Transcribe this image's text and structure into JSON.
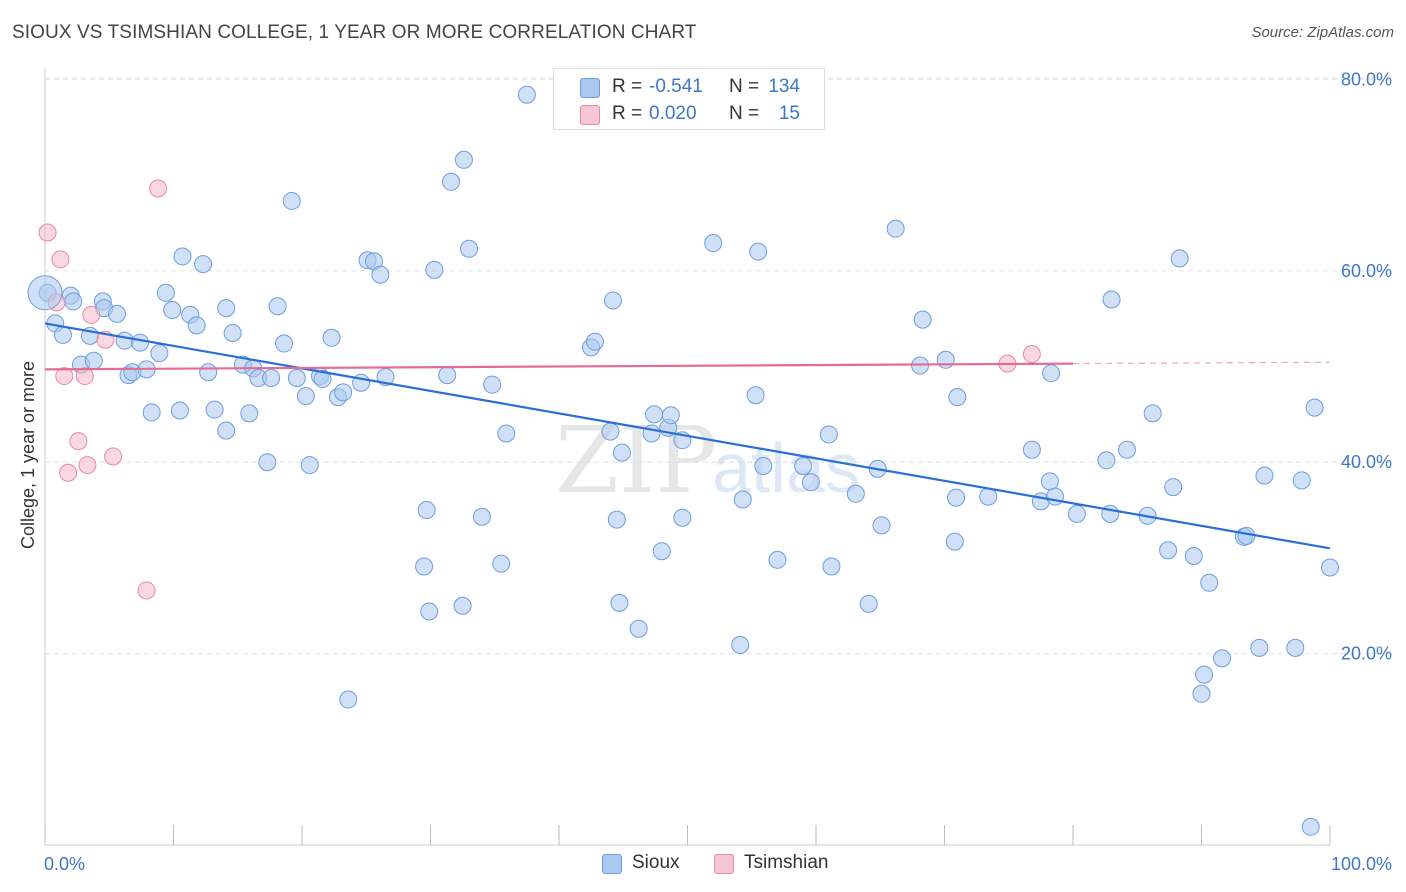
{
  "header": {
    "title": "SIOUX VS TSIMSHIAN COLLEGE, 1 YEAR OR MORE CORRELATION CHART",
    "source": "Source: ZipAtlas.com"
  },
  "legend": {
    "rows": [
      {
        "r_label": "R =",
        "r_value": "-0.541",
        "n_label": "N =",
        "n_value": "134"
      },
      {
        "r_label": "R =",
        "r_value": "0.020",
        "n_label": "N =",
        "n_value": "15"
      }
    ]
  },
  "bottom_legend": {
    "sioux": "Sioux",
    "tsimshian": "Tsimshian"
  },
  "watermark": {
    "zip": "ZIP",
    "atlas": "atlas"
  },
  "colors": {
    "sioux_fill": "#a9c8f0",
    "sioux_stroke": "#6c9de0",
    "sioux_line": "#2a6fd6",
    "tsimshian_fill": "#f6b8c9",
    "tsimshian_stroke": "#e58aa6",
    "tsimshian_line": "#e56b92",
    "axis_text": "#3b78c9",
    "grid": "#e3e3e3"
  },
  "chart_data": {
    "type": "scatter",
    "title": "SIOUX VS TSIMSHIAN COLLEGE, 1 YEAR OR MORE CORRELATION CHART",
    "xlabel": "",
    "ylabel": "College, 1 year or more",
    "xlim": [
      0,
      100
    ],
    "ylim": [
      0,
      82
    ],
    "x_tick_labels": [
      "0.0%",
      "100.0%"
    ],
    "y_ticks": [
      20,
      40,
      60,
      80
    ],
    "y_tick_labels": [
      "20.0%",
      "40.0%",
      "60.0%",
      "80.0%"
    ],
    "grid": true,
    "legend_position": "top-center",
    "series": [
      {
        "name": "Sioux",
        "r": -0.541,
        "n": 134,
        "trend": {
          "x": [
            0,
            100
          ],
          "y": [
            54.5,
            31.0
          ]
        },
        "points": [
          [
            0.2,
            57.7
          ],
          [
            0.8,
            54.5
          ],
          [
            1.4,
            53.3
          ],
          [
            2.0,
            57.4
          ],
          [
            2.2,
            56.8
          ],
          [
            2.8,
            50.2
          ],
          [
            3.5,
            53.2
          ],
          [
            3.8,
            50.6
          ],
          [
            4.5,
            56.8
          ],
          [
            4.6,
            56.1
          ],
          [
            5.6,
            55.5
          ],
          [
            6.2,
            52.7
          ],
          [
            6.5,
            49.1
          ],
          [
            6.8,
            49.4
          ],
          [
            7.4,
            52.5
          ],
          [
            7.9,
            49.7
          ],
          [
            8.3,
            45.2
          ],
          [
            8.9,
            51.4
          ],
          [
            9.4,
            57.7
          ],
          [
            9.9,
            55.9
          ],
          [
            10.5,
            45.4
          ],
          [
            10.7,
            61.5
          ],
          [
            11.3,
            55.4
          ],
          [
            11.8,
            54.3
          ],
          [
            12.3,
            60.7
          ],
          [
            12.7,
            49.4
          ],
          [
            13.2,
            45.5
          ],
          [
            14.1,
            43.3
          ],
          [
            14.1,
            56.1
          ],
          [
            14.6,
            53.5
          ],
          [
            15.4,
            50.2
          ],
          [
            15.9,
            45.1
          ],
          [
            16.2,
            49.8
          ],
          [
            16.6,
            48.8
          ],
          [
            17.3,
            40.0
          ],
          [
            17.6,
            48.8
          ],
          [
            18.1,
            56.3
          ],
          [
            18.6,
            52.4
          ],
          [
            19.2,
            67.3
          ],
          [
            19.6,
            48.8
          ],
          [
            20.3,
            46.9
          ],
          [
            20.6,
            39.7
          ],
          [
            21.4,
            49.0
          ],
          [
            21.6,
            48.7
          ],
          [
            22.3,
            53.0
          ],
          [
            22.8,
            46.8
          ],
          [
            23.2,
            47.3
          ],
          [
            23.6,
            15.2
          ],
          [
            24.6,
            48.3
          ],
          [
            25.1,
            61.1
          ],
          [
            25.6,
            61.0
          ],
          [
            26.1,
            59.6
          ],
          [
            26.5,
            48.9
          ],
          [
            29.5,
            29.1
          ],
          [
            29.7,
            35.0
          ],
          [
            29.9,
            24.4
          ],
          [
            30.3,
            60.1
          ],
          [
            31.3,
            49.1
          ],
          [
            31.6,
            69.3
          ],
          [
            32.5,
            25.0
          ],
          [
            32.6,
            71.6
          ],
          [
            33.0,
            62.3
          ],
          [
            34.0,
            34.3
          ],
          [
            34.8,
            48.1
          ],
          [
            35.5,
            29.4
          ],
          [
            35.9,
            43.0
          ],
          [
            37.5,
            78.4
          ],
          [
            42.5,
            52.0
          ],
          [
            42.8,
            52.6
          ],
          [
            44.0,
            43.2
          ],
          [
            44.2,
            56.9
          ],
          [
            44.5,
            34.0
          ],
          [
            44.7,
            25.3
          ],
          [
            44.9,
            41.0
          ],
          [
            46.2,
            22.6
          ],
          [
            47.2,
            43.0
          ],
          [
            47.4,
            45.0
          ],
          [
            48.0,
            30.7
          ],
          [
            48.5,
            43.6
          ],
          [
            48.7,
            44.9
          ],
          [
            49.6,
            34.2
          ],
          [
            49.6,
            42.3
          ],
          [
            52.0,
            62.9
          ],
          [
            54.1,
            20.9
          ],
          [
            54.3,
            36.1
          ],
          [
            55.3,
            47.0
          ],
          [
            55.5,
            62.0
          ],
          [
            55.9,
            39.6
          ],
          [
            57.0,
            29.8
          ],
          [
            59.0,
            39.6
          ],
          [
            59.6,
            37.9
          ],
          [
            61.0,
            42.9
          ],
          [
            61.2,
            29.1
          ],
          [
            63.1,
            36.7
          ],
          [
            64.1,
            25.2
          ],
          [
            64.8,
            39.3
          ],
          [
            65.1,
            33.4
          ],
          [
            66.2,
            64.4
          ],
          [
            68.1,
            50.1
          ],
          [
            68.3,
            54.9
          ],
          [
            70.1,
            50.7
          ],
          [
            70.8,
            31.7
          ],
          [
            70.9,
            36.3
          ],
          [
            71.0,
            46.8
          ],
          [
            73.4,
            36.4
          ],
          [
            76.8,
            41.3
          ],
          [
            77.5,
            35.9
          ],
          [
            78.2,
            38.0
          ],
          [
            78.3,
            49.3
          ],
          [
            78.6,
            36.4
          ],
          [
            80.3,
            34.6
          ],
          [
            82.6,
            40.2
          ],
          [
            82.9,
            34.6
          ],
          [
            83.0,
            57.0
          ],
          [
            84.2,
            41.3
          ],
          [
            85.8,
            34.4
          ],
          [
            86.2,
            45.1
          ],
          [
            87.4,
            30.8
          ],
          [
            87.8,
            37.4
          ],
          [
            88.3,
            61.3
          ],
          [
            89.4,
            30.2
          ],
          [
            90.0,
            15.8
          ],
          [
            90.2,
            17.8
          ],
          [
            90.6,
            27.4
          ],
          [
            91.6,
            19.5
          ],
          [
            93.3,
            32.2
          ],
          [
            93.5,
            32.3
          ],
          [
            94.5,
            20.6
          ],
          [
            94.9,
            38.6
          ],
          [
            97.3,
            20.6
          ],
          [
            97.8,
            38.1
          ],
          [
            98.5,
            1.9
          ],
          [
            98.8,
            45.7
          ],
          [
            100.0,
            29.0
          ]
        ]
      },
      {
        "name": "Tsimshian",
        "r": 0.02,
        "n": 15,
        "trend": {
          "x": [
            0,
            80
          ],
          "y": [
            49.7,
            50.3
          ],
          "dashed_extension_to_x": 100
        },
        "points": [
          [
            0.2,
            64.0
          ],
          [
            0.9,
            56.7
          ],
          [
            1.2,
            61.2
          ],
          [
            1.5,
            49.0
          ],
          [
            1.8,
            38.9
          ],
          [
            2.6,
            42.2
          ],
          [
            3.1,
            49.0
          ],
          [
            3.3,
            39.7
          ],
          [
            3.6,
            55.4
          ],
          [
            4.7,
            52.8
          ],
          [
            5.3,
            40.6
          ],
          [
            7.9,
            26.6
          ],
          [
            8.8,
            68.6
          ],
          [
            74.9,
            50.3
          ],
          [
            76.8,
            51.3
          ]
        ]
      }
    ]
  }
}
